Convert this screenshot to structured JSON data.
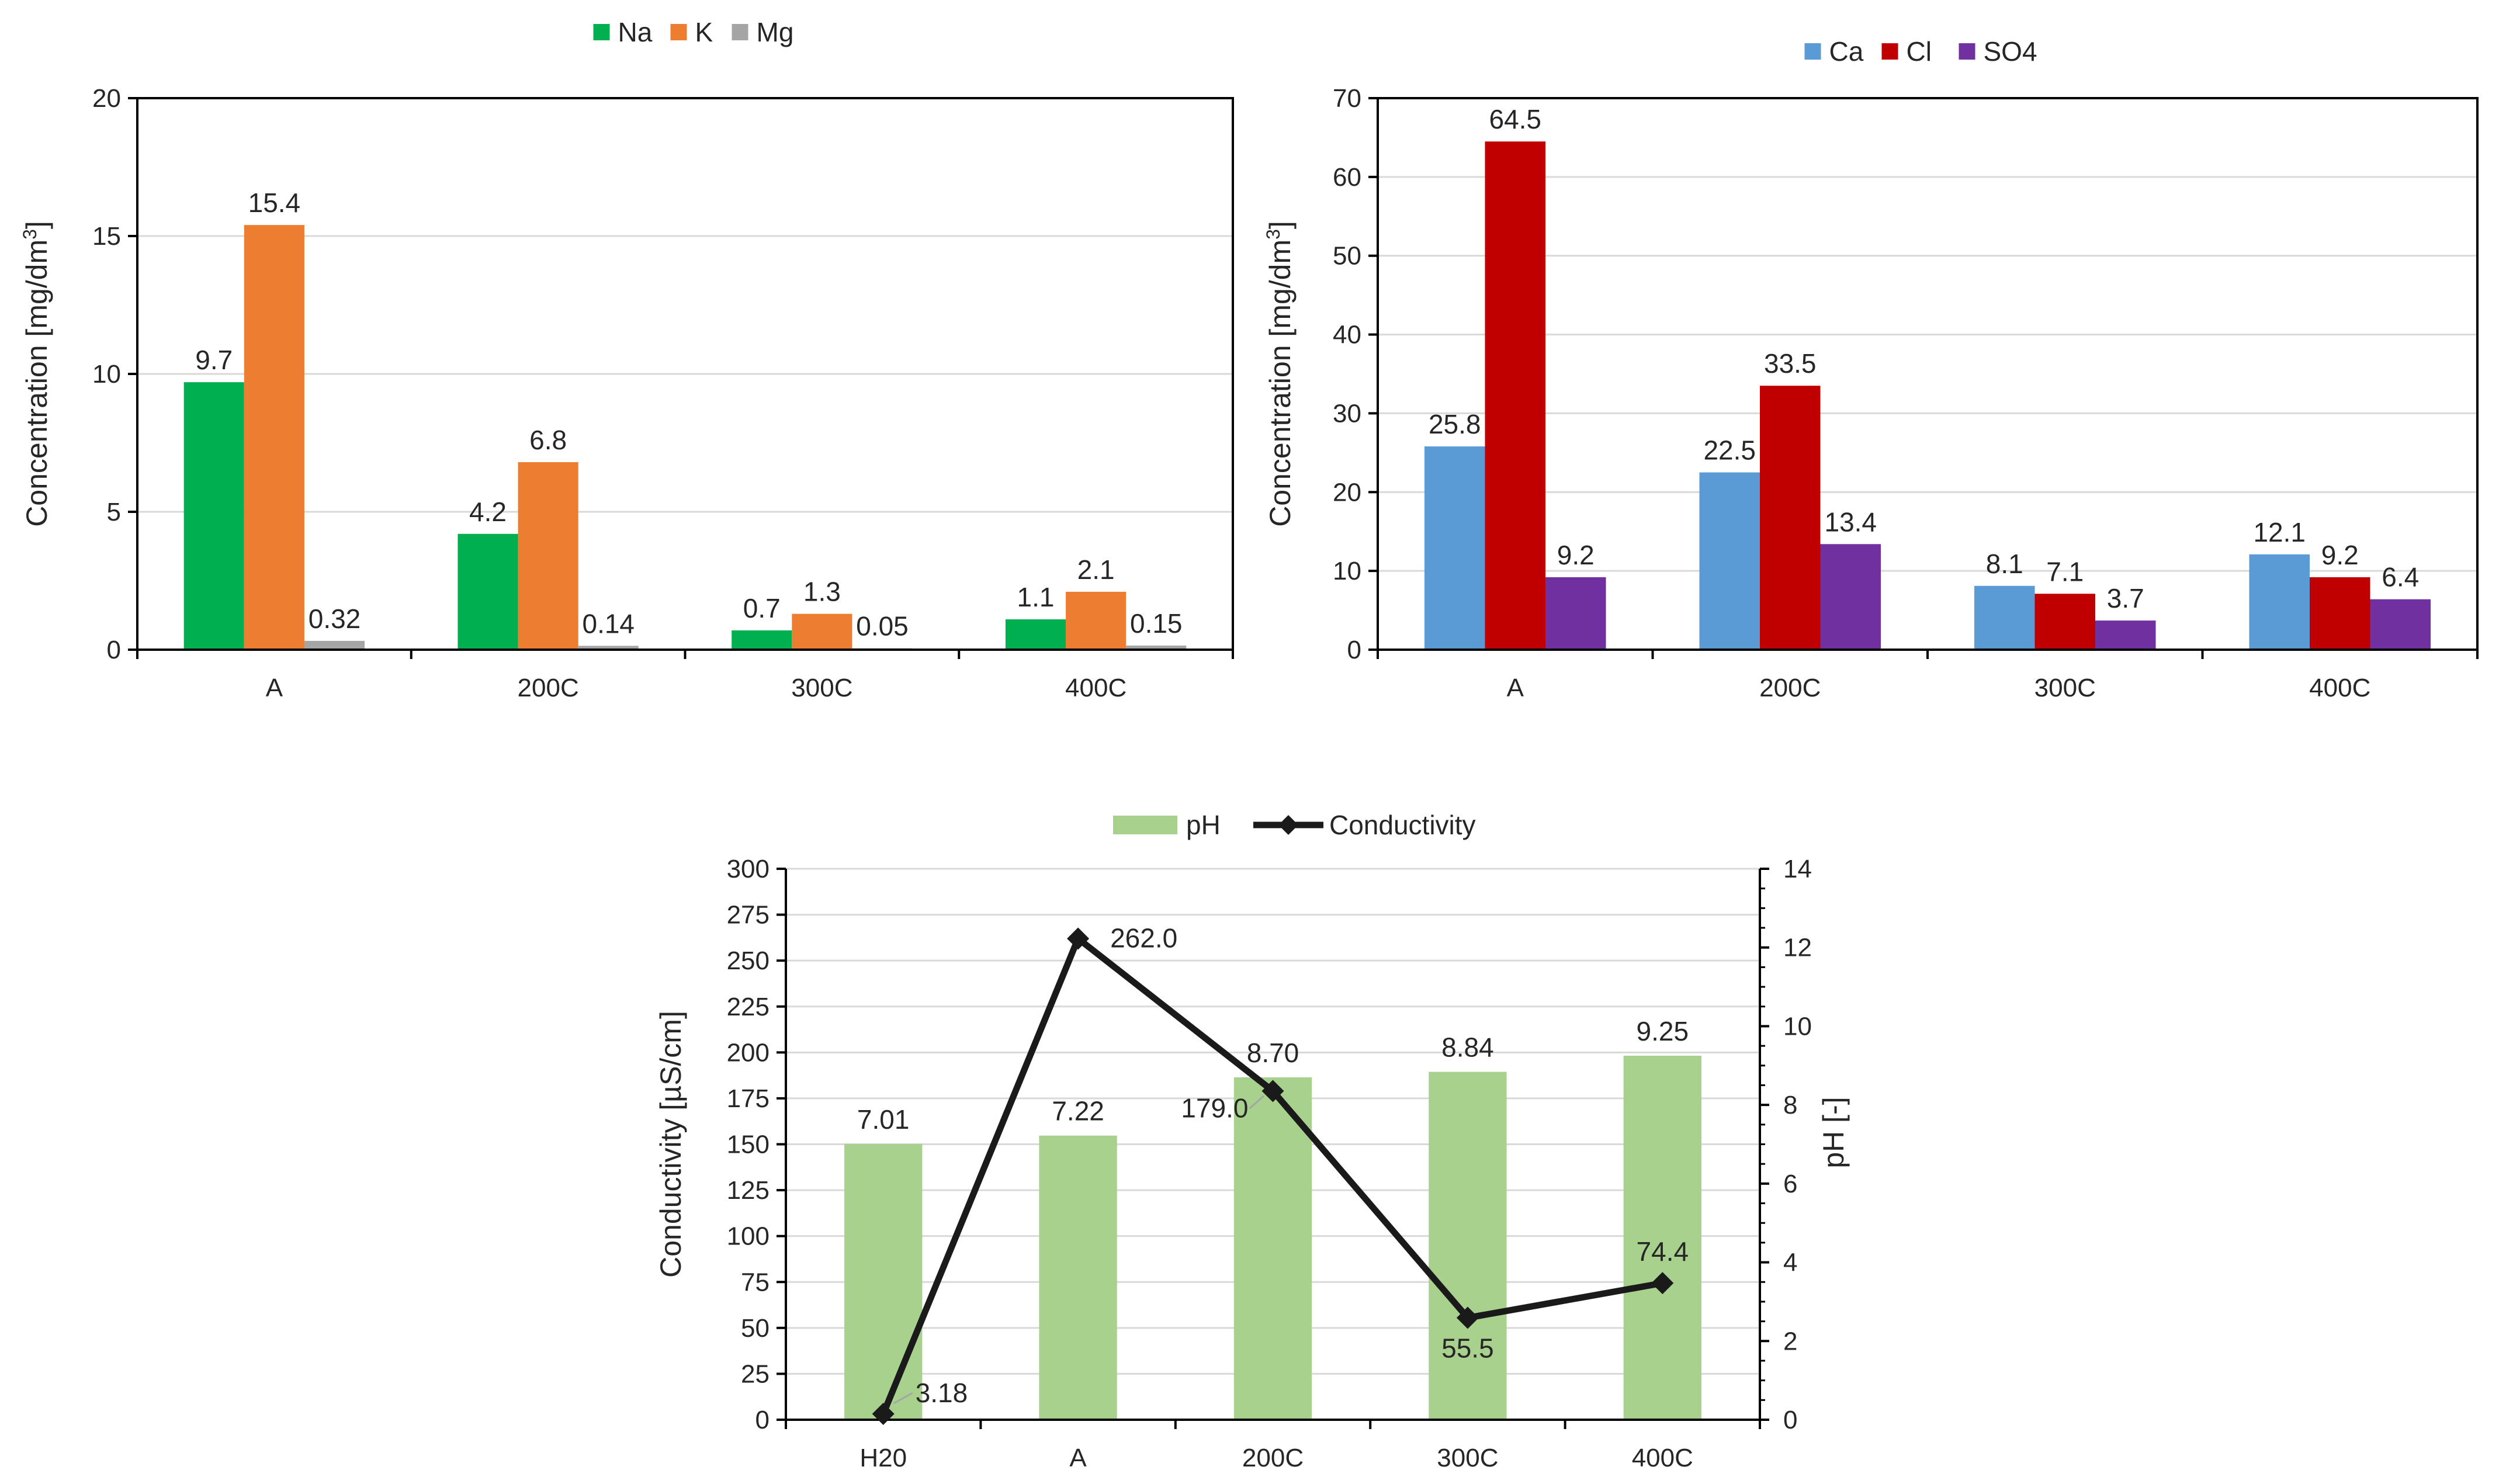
{
  "chart_data": [
    {
      "id": "cations",
      "type": "bar",
      "title": "",
      "categories": [
        "A",
        "200C",
        "300C",
        "400C"
      ],
      "series": [
        {
          "name": "Na",
          "color": "#00b050",
          "values": [
            9.7,
            4.2,
            0.7,
            1.1
          ],
          "labels": [
            "9.7",
            "4.2",
            "0.7",
            "1.1"
          ]
        },
        {
          "name": "K",
          "color": "#ed7d31",
          "values": [
            15.4,
            6.8,
            1.3,
            2.1
          ],
          "labels": [
            "15.4",
            "6.8",
            "1.3",
            "2.1"
          ]
        },
        {
          "name": "Mg",
          "color": "#a5a5a5",
          "values": [
            0.32,
            0.14,
            0.05,
            0.15
          ],
          "labels": [
            "0.32",
            "0.14",
            "0.05",
            "0.15"
          ]
        }
      ],
      "yticks": [
        "0",
        "5",
        "10",
        "15",
        "20"
      ],
      "ylim": [
        0,
        20
      ],
      "xlabel": "",
      "ylabel": "Concentration [mg/dm",
      "ylabel_sup": "3",
      "ylabel_end": "]",
      "grid": true,
      "legend": "top-center"
    },
    {
      "id": "anions",
      "type": "bar",
      "title": "",
      "categories": [
        "A",
        "200C",
        "300C",
        "400C"
      ],
      "series": [
        {
          "name": "Ca",
          "color": "#5b9bd5",
          "values": [
            25.8,
            22.5,
            8.1,
            12.1
          ],
          "labels": [
            "25.8",
            "22.5",
            "8.1",
            "12.1"
          ]
        },
        {
          "name": "Cl",
          "color": "#c00000",
          "values": [
            64.5,
            33.5,
            7.1,
            9.2
          ],
          "labels": [
            "64.5",
            "33.5",
            "7.1",
            "9.2"
          ]
        },
        {
          "name": "SO4",
          "color": "#7030a0",
          "values": [
            9.2,
            13.4,
            3.7,
            6.4
          ],
          "labels": [
            "9.2",
            "13.4",
            "3.7",
            "6.4"
          ]
        }
      ],
      "yticks": [
        "0",
        "10",
        "20",
        "30",
        "40",
        "50",
        "60",
        "70"
      ],
      "ylim": [
        0,
        70
      ],
      "xlabel": "",
      "ylabel": "Concentration [mg/dm",
      "ylabel_sup": "3",
      "ylabel_end": "]",
      "grid": true,
      "legend": "top-center"
    },
    {
      "id": "ph-conductivity",
      "type": "bar",
      "title": "",
      "categories": [
        "H20",
        "A",
        "200C",
        "300C",
        "400C"
      ],
      "series": [
        {
          "name": "pH",
          "type": "bar",
          "axis": "right",
          "color": "#a9d18e",
          "values": [
            7.01,
            7.22,
            8.7,
            8.84,
            9.25
          ],
          "labels": [
            "7.01",
            "7.22",
            "8.70",
            "8.84",
            "9.25"
          ]
        },
        {
          "name": "Conductivity",
          "type": "line",
          "axis": "left",
          "color": "#1a1a1a",
          "values": [
            3.18,
            262.0,
            179.0,
            55.5,
            74.4
          ],
          "labels": [
            "3.18",
            "262.0",
            "179.0",
            "55.5",
            "74.4"
          ]
        }
      ],
      "yticks_left": [
        "0",
        "25",
        "50",
        "75",
        "100",
        "125",
        "150",
        "175",
        "200",
        "225",
        "250",
        "275",
        "300"
      ],
      "ylim_left": [
        0,
        300
      ],
      "ylabel_left": "Conductivity [µS/cm]",
      "yticks_right": [
        "0",
        "2",
        "4",
        "6",
        "8",
        "10",
        "12",
        "14"
      ],
      "ylim_right": [
        0,
        14
      ],
      "ylabel_right": "pH [-]",
      "xlabel": "",
      "grid": true,
      "legend": "top-center"
    }
  ]
}
